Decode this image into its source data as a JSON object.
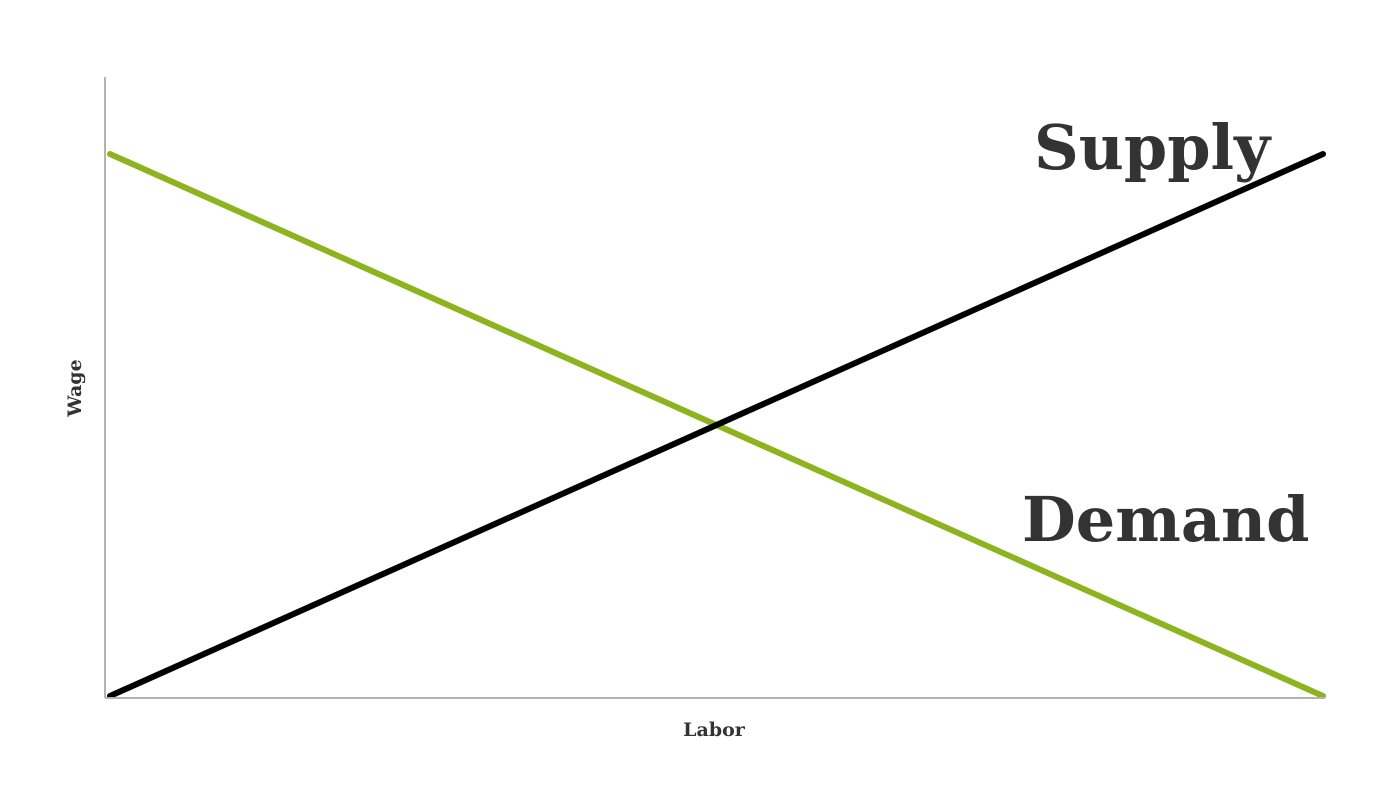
{
  "chart_data": {
    "type": "line",
    "title": "",
    "xlabel": "Labor",
    "ylabel": "Wage",
    "xlim": [
      0,
      10
    ],
    "ylim": [
      0,
      10
    ],
    "grid": false,
    "legend": "none",
    "series": [
      {
        "name": "Supply",
        "color": "#000000",
        "x": [
          0,
          10
        ],
        "y": [
          0,
          10
        ]
      },
      {
        "name": "Demand",
        "color": "#8db31f",
        "x": [
          0,
          10
        ],
        "y": [
          10,
          0
        ]
      }
    ]
  }
}
